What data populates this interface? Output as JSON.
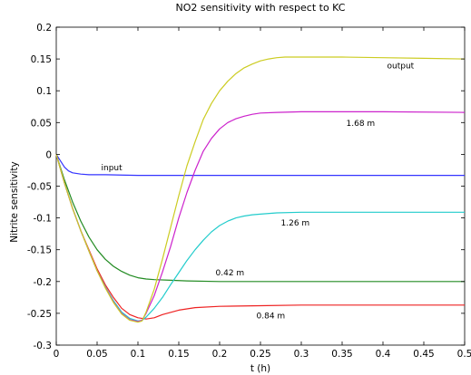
{
  "chart_data": {
    "type": "line",
    "title": "NO2 sensitivity with respect to KC",
    "xlabel": "t (h)",
    "ylabel": "Nitrite sensitivity",
    "xlim": [
      0,
      0.5
    ],
    "ylim": [
      -0.3,
      0.2
    ],
    "xticks": [
      "0",
      "0.05",
      "0.1",
      "0.15",
      "0.2",
      "0.25",
      "0.3",
      "0.35",
      "0.4",
      "0.45",
      "0.5"
    ],
    "yticks": [
      "-0.3",
      "-0.25",
      "-0.2",
      "-0.15",
      "-0.1",
      "-0.05",
      "0",
      "0.05",
      "0.1",
      "0.15",
      "0.2"
    ],
    "grid": false,
    "series": [
      {
        "name": "input",
        "color": "#3333ff",
        "x": [
          0,
          0.005,
          0.01,
          0.015,
          0.02,
          0.03,
          0.04,
          0.06,
          0.1,
          0.2,
          0.3,
          0.4,
          0.5
        ],
        "y": [
          0,
          -0.01,
          -0.02,
          -0.026,
          -0.029,
          -0.031,
          -0.032,
          -0.032,
          -0.033,
          -0.033,
          -0.033,
          -0.033,
          -0.033
        ]
      },
      {
        "name": "0.42 m",
        "color": "#228b22",
        "x": [
          0,
          0.01,
          0.02,
          0.03,
          0.04,
          0.05,
          0.06,
          0.07,
          0.08,
          0.09,
          0.1,
          0.11,
          0.12,
          0.14,
          0.16,
          0.2,
          0.3,
          0.4,
          0.5
        ],
        "y": [
          0,
          -0.04,
          -0.075,
          -0.105,
          -0.13,
          -0.15,
          -0.165,
          -0.176,
          -0.184,
          -0.19,
          -0.194,
          -0.196,
          -0.197,
          -0.198,
          -0.199,
          -0.2,
          -0.2,
          -0.2,
          -0.2
        ]
      },
      {
        "name": "0.84 m",
        "color": "#ee2222",
        "x": [
          0,
          0.01,
          0.02,
          0.03,
          0.04,
          0.05,
          0.06,
          0.07,
          0.08,
          0.09,
          0.1,
          0.11,
          0.12,
          0.13,
          0.15,
          0.17,
          0.2,
          0.25,
          0.3,
          0.4,
          0.5
        ],
        "y": [
          0,
          -0.045,
          -0.085,
          -0.12,
          -0.15,
          -0.18,
          -0.205,
          -0.225,
          -0.242,
          -0.252,
          -0.257,
          -0.259,
          -0.257,
          -0.252,
          -0.245,
          -0.241,
          -0.239,
          -0.238,
          -0.237,
          -0.237,
          -0.237
        ]
      },
      {
        "name": "1.26 m",
        "color": "#22cccc",
        "x": [
          0,
          0.01,
          0.02,
          0.03,
          0.04,
          0.05,
          0.06,
          0.07,
          0.08,
          0.09,
          0.1,
          0.105,
          0.11,
          0.12,
          0.13,
          0.14,
          0.15,
          0.16,
          0.17,
          0.18,
          0.19,
          0.2,
          0.21,
          0.22,
          0.23,
          0.24,
          0.25,
          0.27,
          0.3,
          0.35,
          0.4,
          0.5
        ],
        "y": [
          0,
          -0.045,
          -0.085,
          -0.12,
          -0.152,
          -0.183,
          -0.208,
          -0.23,
          -0.248,
          -0.258,
          -0.262,
          -0.261,
          -0.256,
          -0.242,
          -0.225,
          -0.205,
          -0.186,
          -0.167,
          -0.15,
          -0.135,
          -0.122,
          -0.112,
          -0.105,
          -0.1,
          -0.097,
          -0.095,
          -0.094,
          -0.092,
          -0.091,
          -0.091,
          -0.091,
          -0.091
        ]
      },
      {
        "name": "1.68 m",
        "color": "#cc22cc",
        "x": [
          0,
          0.01,
          0.02,
          0.03,
          0.04,
          0.05,
          0.06,
          0.07,
          0.08,
          0.09,
          0.1,
          0.105,
          0.11,
          0.12,
          0.13,
          0.14,
          0.15,
          0.16,
          0.17,
          0.18,
          0.19,
          0.2,
          0.21,
          0.22,
          0.23,
          0.24,
          0.25,
          0.27,
          0.3,
          0.35,
          0.4,
          0.5
        ],
        "y": [
          0,
          -0.045,
          -0.085,
          -0.12,
          -0.152,
          -0.183,
          -0.209,
          -0.232,
          -0.25,
          -0.26,
          -0.263,
          -0.261,
          -0.25,
          -0.222,
          -0.185,
          -0.145,
          -0.1,
          -0.06,
          -0.025,
          0.005,
          0.025,
          0.04,
          0.05,
          0.056,
          0.06,
          0.063,
          0.065,
          0.066,
          0.067,
          0.067,
          0.067,
          0.066
        ]
      },
      {
        "name": "output",
        "color": "#cccc22",
        "x": [
          0,
          0.01,
          0.02,
          0.03,
          0.04,
          0.05,
          0.06,
          0.07,
          0.08,
          0.09,
          0.1,
          0.105,
          0.11,
          0.12,
          0.13,
          0.14,
          0.15,
          0.16,
          0.17,
          0.18,
          0.19,
          0.2,
          0.21,
          0.22,
          0.23,
          0.24,
          0.25,
          0.26,
          0.27,
          0.28,
          0.3,
          0.35,
          0.4,
          0.45,
          0.5
        ],
        "y": [
          0,
          -0.045,
          -0.085,
          -0.12,
          -0.152,
          -0.183,
          -0.21,
          -0.233,
          -0.251,
          -0.261,
          -0.264,
          -0.262,
          -0.248,
          -0.212,
          -0.165,
          -0.115,
          -0.065,
          -0.018,
          0.02,
          0.055,
          0.08,
          0.1,
          0.115,
          0.127,
          0.136,
          0.142,
          0.147,
          0.15,
          0.152,
          0.153,
          0.153,
          0.153,
          0.152,
          0.151,
          0.15
        ]
      }
    ],
    "annotations": [
      {
        "text": "input",
        "x": 0.055,
        "y": -0.025,
        "anchor": "start"
      },
      {
        "text": "output",
        "x": 0.405,
        "y": 0.135,
        "anchor": "start"
      },
      {
        "text": "1.68 m",
        "x": 0.355,
        "y": 0.045,
        "anchor": "start"
      },
      {
        "text": "1.26 m",
        "x": 0.275,
        "y": -0.112,
        "anchor": "start"
      },
      {
        "text": "0.42 m",
        "x": 0.195,
        "y": -0.19,
        "anchor": "start"
      },
      {
        "text": "0.84 m",
        "x": 0.245,
        "y": -0.258,
        "anchor": "start"
      }
    ]
  }
}
